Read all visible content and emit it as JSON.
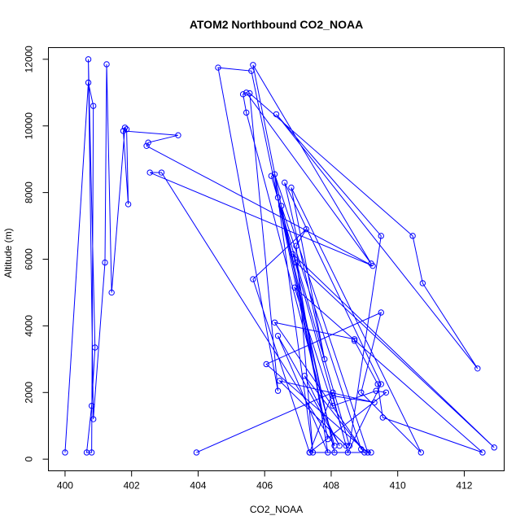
{
  "chart_data": {
    "type": "line",
    "title": "ATOM2 Northbound CO2_NOAA",
    "xlabel": "CO2_NOAA",
    "ylabel": "Altitude (m)",
    "xlim": [
      400,
      413
    ],
    "ylim": [
      0,
      12000
    ],
    "xticks": [
      400,
      402,
      404,
      406,
      408,
      410,
      412
    ],
    "yticks": [
      0,
      2000,
      4000,
      6000,
      8000,
      10000,
      12000
    ],
    "grid": false,
    "color": "#0000ff",
    "marker": "open-circle",
    "series": [
      {
        "x": [
          400.0,
          400.7,
          400.85,
          400.8,
          400.65,
          400.8,
          400.9,
          400.7,
          400.85,
          401.2,
          401.25,
          401.4,
          401.8,
          401.85,
          401.9,
          401.75,
          403.4,
          402.5,
          402.45,
          409.25,
          402.55,
          402.9,
          408.1,
          405.45,
          405.35,
          405.45,
          409.2,
          405.65,
          407.9,
          405.6,
          404.6,
          406.4,
          405.55,
          410.45,
          410.75,
          412.4,
          406.35,
          409.5,
          408.55,
          406.2,
          406.4,
          408.1,
          406.5,
          408.9,
          409.2,
          407.35,
          405.65,
          407.25,
          406.95,
          407.45,
          406.3,
          409.1,
          406.05,
          409.5,
          408.9,
          410.7,
          406.8,
          407.8,
          406.6,
          409.5,
          408.5,
          408.05,
          409.3,
          406.45,
          408.45,
          406.85,
          412.9,
          406.95,
          407.9,
          406.4,
          408.25,
          407.2,
          409.0,
          406.3,
          408.7,
          408.7,
          409.4,
          409.55,
          412.55,
          406.9,
          408.05,
          409.35,
          409.65,
          407.35,
          408.05,
          403.95
        ],
        "y": [
          200,
          11300,
          10600,
          200,
          200,
          1600,
          3350,
          12000,
          1200,
          5900,
          11850,
          5000,
          9950,
          9900,
          7650,
          9850,
          9720,
          9500,
          9400,
          5800,
          8600,
          8600,
          400,
          10400,
          10950,
          11000,
          5870,
          11830,
          600,
          11650,
          11750,
          2050,
          10980,
          6700,
          5280,
          2720,
          10350,
          6700,
          400,
          8500,
          7850,
          200,
          7600,
          300,
          200,
          200,
          5400,
          6900,
          6400,
          200,
          8550,
          200,
          2850,
          4400,
          2000,
          200,
          8150,
          3000,
          8300,
          2250,
          200,
          1900,
          1700,
          2350,
          400,
          6150,
          350,
          5900,
          200,
          3700,
          400,
          2500,
          200,
          4100,
          3600,
          3550,
          2250,
          1250,
          200,
          5150,
          1600,
          2050,
          2000,
          200,
          2000,
          200
        ]
      }
    ]
  }
}
